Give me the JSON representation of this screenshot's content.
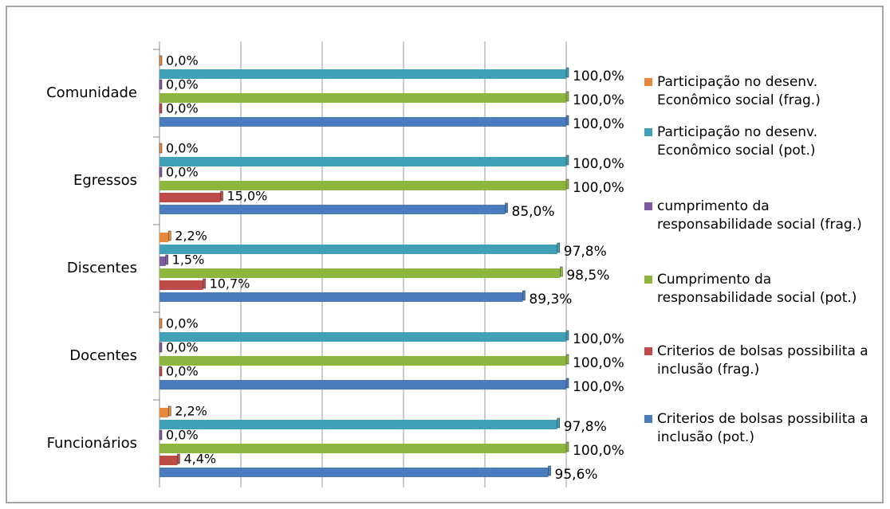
{
  "chart_data": {
    "type": "bar",
    "orientation": "horizontal",
    "categories": [
      "Comunidade",
      "Egressos",
      "Discentes",
      "Docentes",
      "Funcionários"
    ],
    "xlim": [
      0,
      100
    ],
    "xticks": [
      0,
      20,
      40,
      60,
      80,
      100
    ],
    "grid": true,
    "legend": "right",
    "series": [
      {
        "name": "Participação no desenv. Econômico social (frag.)",
        "color": "#e8883a",
        "values": [
          0,
          0,
          2.2,
          0,
          2.2
        ],
        "value_labels": [
          "0,0%",
          "0,0%",
          "2,2%",
          "0,0%",
          "2,2%"
        ]
      },
      {
        "name": "Participação no desenv. Econômico social (pot.)",
        "color": "#3fa0b8",
        "values": [
          100,
          100,
          97.8,
          100,
          97.8
        ],
        "value_labels": [
          "100,0%",
          "100,0%",
          "97,8%",
          "100,0%",
          "97,8%"
        ]
      },
      {
        "name": "cumprimento da responsabilidade social (frag.)",
        "color": "#7e5aa0",
        "values": [
          0,
          0,
          1.5,
          0,
          0
        ],
        "value_labels": [
          "0,0%",
          "0,0%",
          "1,5%",
          "0,0%",
          "0,0%"
        ]
      },
      {
        "name": "Cumprimento da responsabilidade social (pot.)",
        "color": "#8db63f",
        "values": [
          100,
          100,
          98.5,
          100,
          100
        ],
        "value_labels": [
          "100,0%",
          "100,0%",
          "98,5%",
          "100,0%",
          "100,0%"
        ]
      },
      {
        "name": "Criterios de bolsas possibilita a inclusão (frag.)",
        "color": "#be4b48",
        "values": [
          0,
          15,
          10.7,
          0,
          4.4
        ],
        "value_labels": [
          "0,0%",
          "15,0%",
          "10,7%",
          "0,0%",
          "4,4%"
        ]
      },
      {
        "name": "Criterios de bolsas possibilita a inclusão (pot.)",
        "color": "#4a7bbf",
        "values": [
          100,
          85,
          89.3,
          100,
          95.6
        ],
        "value_labels": [
          "100,0%",
          "85,0%",
          "89,3%",
          "100,0%",
          "95,6%"
        ]
      }
    ]
  }
}
